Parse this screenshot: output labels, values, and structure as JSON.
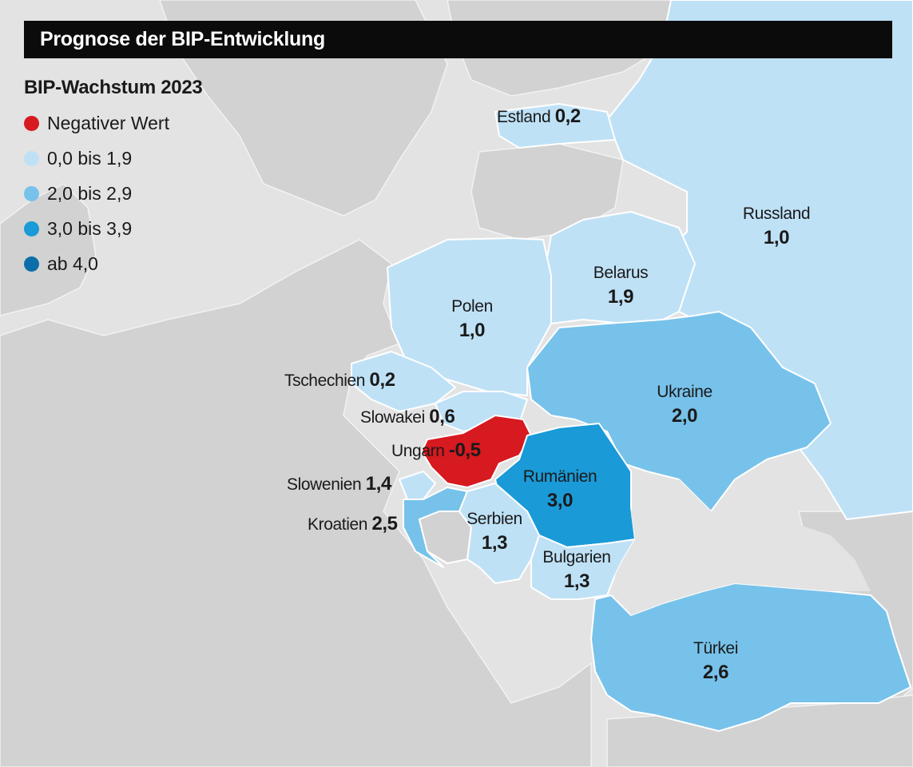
{
  "title": "Prognose der BIP-Entwicklung",
  "legend": {
    "title": "BIP-Wachstum 2023",
    "items": [
      {
        "label": "Negativer Wert",
        "color": "#d71920"
      },
      {
        "label": "0,0 bis 1,9",
        "color": "#bfe1f6"
      },
      {
        "label": "2,0 bis 2,9",
        "color": "#77c2ea"
      },
      {
        "label": "3,0 bis 3,9",
        "color": "#1a9ad7"
      },
      {
        "label": "ab 4,0",
        "color": "#0b6ea8"
      }
    ]
  },
  "colors": {
    "negative": "#d71920",
    "low": "#bfe1f6",
    "mid": "#77c2ea",
    "high": "#1a9ad7",
    "top": "#0b6ea8",
    "land": "#d2d2d2",
    "sea": "#e3e3e3"
  },
  "countries": {
    "estland": {
      "name": "Estland",
      "value": "0,2"
    },
    "russland": {
      "name": "Russland",
      "value": "1,0"
    },
    "belarus": {
      "name": "Belarus",
      "value": "1,9"
    },
    "polen": {
      "name": "Polen",
      "value": "1,0"
    },
    "ukraine": {
      "name": "Ukraine",
      "value": "2,0"
    },
    "tschechien": {
      "name": "Tschechien",
      "value": "0,2"
    },
    "slowakei": {
      "name": "Slowakei",
      "value": "0,6"
    },
    "ungarn": {
      "name": "Ungarn",
      "value": "-0,5"
    },
    "rumaenien": {
      "name": "Rumänien",
      "value": "3,0"
    },
    "slowenien": {
      "name": "Slowenien",
      "value": "1,4"
    },
    "kroatien": {
      "name": "Kroatien",
      "value": "2,5"
    },
    "serbien": {
      "name": "Serbien",
      "value": "1,3"
    },
    "bulgarien": {
      "name": "Bulgarien",
      "value": "1,3"
    },
    "tuerkei": {
      "name": "Türkei",
      "value": "2,6"
    }
  }
}
